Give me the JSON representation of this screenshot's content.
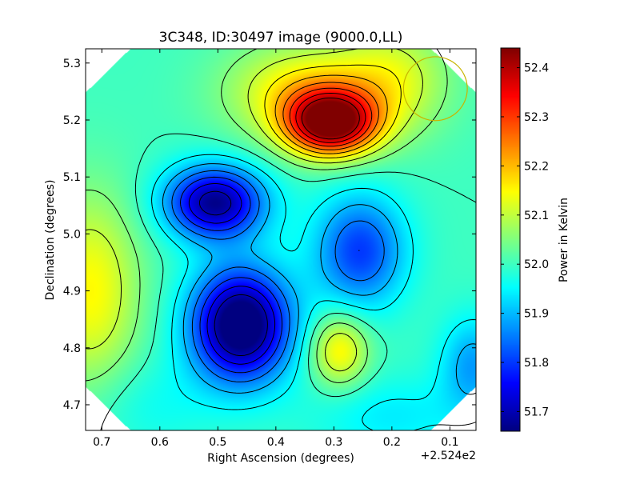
{
  "chart_data": {
    "type": "heatmap",
    "title": "3C348, ID:30497 image (9000.0,LL)",
    "xlabel": "Right Ascension (degrees)",
    "ylabel": "Declination (degrees)",
    "x_offset_label": "+2.524e2",
    "x_range": [
      0.728,
      0.055
    ],
    "y_range": [
      4.655,
      5.325
    ],
    "x_ticks": [
      {
        "value": 0.7,
        "label": "0.7"
      },
      {
        "value": 0.6,
        "label": "0.6"
      },
      {
        "value": 0.5,
        "label": "0.5"
      },
      {
        "value": 0.4,
        "label": "0.4"
      },
      {
        "value": 0.3,
        "label": "0.3"
      },
      {
        "value": 0.2,
        "label": "0.2"
      },
      {
        "value": 0.1,
        "label": "0.1"
      }
    ],
    "y_ticks": [
      {
        "value": 4.7,
        "label": "4.7"
      },
      {
        "value": 4.8,
        "label": "4.8"
      },
      {
        "value": 4.9,
        "label": "4.9"
      },
      {
        "value": 5.0,
        "label": "5.0"
      },
      {
        "value": 5.1,
        "label": "5.1"
      },
      {
        "value": 5.2,
        "label": "5.2"
      },
      {
        "value": 5.3,
        "label": "5.3"
      }
    ],
    "colorbar": {
      "label": "Power in Kelvin",
      "range": [
        51.66,
        52.44
      ],
      "ticks": [
        {
          "value": 51.7,
          "label": "51.7"
        },
        {
          "value": 51.8,
          "label": "51.8"
        },
        {
          "value": 51.9,
          "label": "51.9"
        },
        {
          "value": 52.0,
          "label": "52.0"
        },
        {
          "value": 52.1,
          "label": "52.1"
        },
        {
          "value": 52.2,
          "label": "52.2"
        },
        {
          "value": 52.3,
          "label": "52.3"
        },
        {
          "value": 52.4,
          "label": "52.4"
        }
      ],
      "colormap": "jet"
    },
    "base_level": 52.0,
    "features": [
      {
        "kind": "peak",
        "x": 0.305,
        "y": 5.195,
        "amplitude": 0.44,
        "sx": 0.055,
        "sy": 0.04
      },
      {
        "kind": "peak",
        "x": 0.36,
        "y": 5.25,
        "amplitude": 0.15,
        "sx": 0.09,
        "sy": 0.06
      },
      {
        "kind": "peak",
        "x": 0.2,
        "y": 5.27,
        "amplitude": 0.12,
        "sx": 0.07,
        "sy": 0.07
      },
      {
        "kind": "trough",
        "x": 0.505,
        "y": 5.055,
        "amplitude": -0.33,
        "sx": 0.06,
        "sy": 0.045
      },
      {
        "kind": "trough",
        "x": 0.46,
        "y": 4.84,
        "amplitude": -0.4,
        "sx": 0.06,
        "sy": 0.07
      },
      {
        "kind": "trough",
        "x": 0.255,
        "y": 4.97,
        "amplitude": -0.2,
        "sx": 0.055,
        "sy": 0.07
      },
      {
        "kind": "peak",
        "x": 0.29,
        "y": 4.795,
        "amplitude": 0.16,
        "sx": 0.035,
        "sy": 0.045
      },
      {
        "kind": "peak",
        "x": 0.72,
        "y": 4.9,
        "amplitude": 0.15,
        "sx": 0.06,
        "sy": 0.12
      },
      {
        "kind": "trough",
        "x": 0.06,
        "y": 4.77,
        "amplitude": -0.12,
        "sx": 0.04,
        "sy": 0.06
      },
      {
        "kind": "trough",
        "x": 0.2,
        "y": 4.68,
        "amplitude": -0.06,
        "sx": 0.1,
        "sy": 0.05
      },
      {
        "kind": "trough",
        "x": 0.62,
        "y": 4.7,
        "amplitude": -0.04,
        "sx": 0.08,
        "sy": 0.06
      }
    ],
    "beam_marker": {
      "x": 0.125,
      "y": 5.255,
      "radius": 0.055,
      "color": "#c8b400"
    },
    "contour_levels": [
      51.7,
      51.75,
      51.8,
      51.85,
      51.9,
      51.95,
      52.0,
      52.05,
      52.1,
      52.15,
      52.2,
      52.25,
      52.3,
      52.35,
      52.4
    ],
    "grid": false,
    "legend": "none"
  }
}
